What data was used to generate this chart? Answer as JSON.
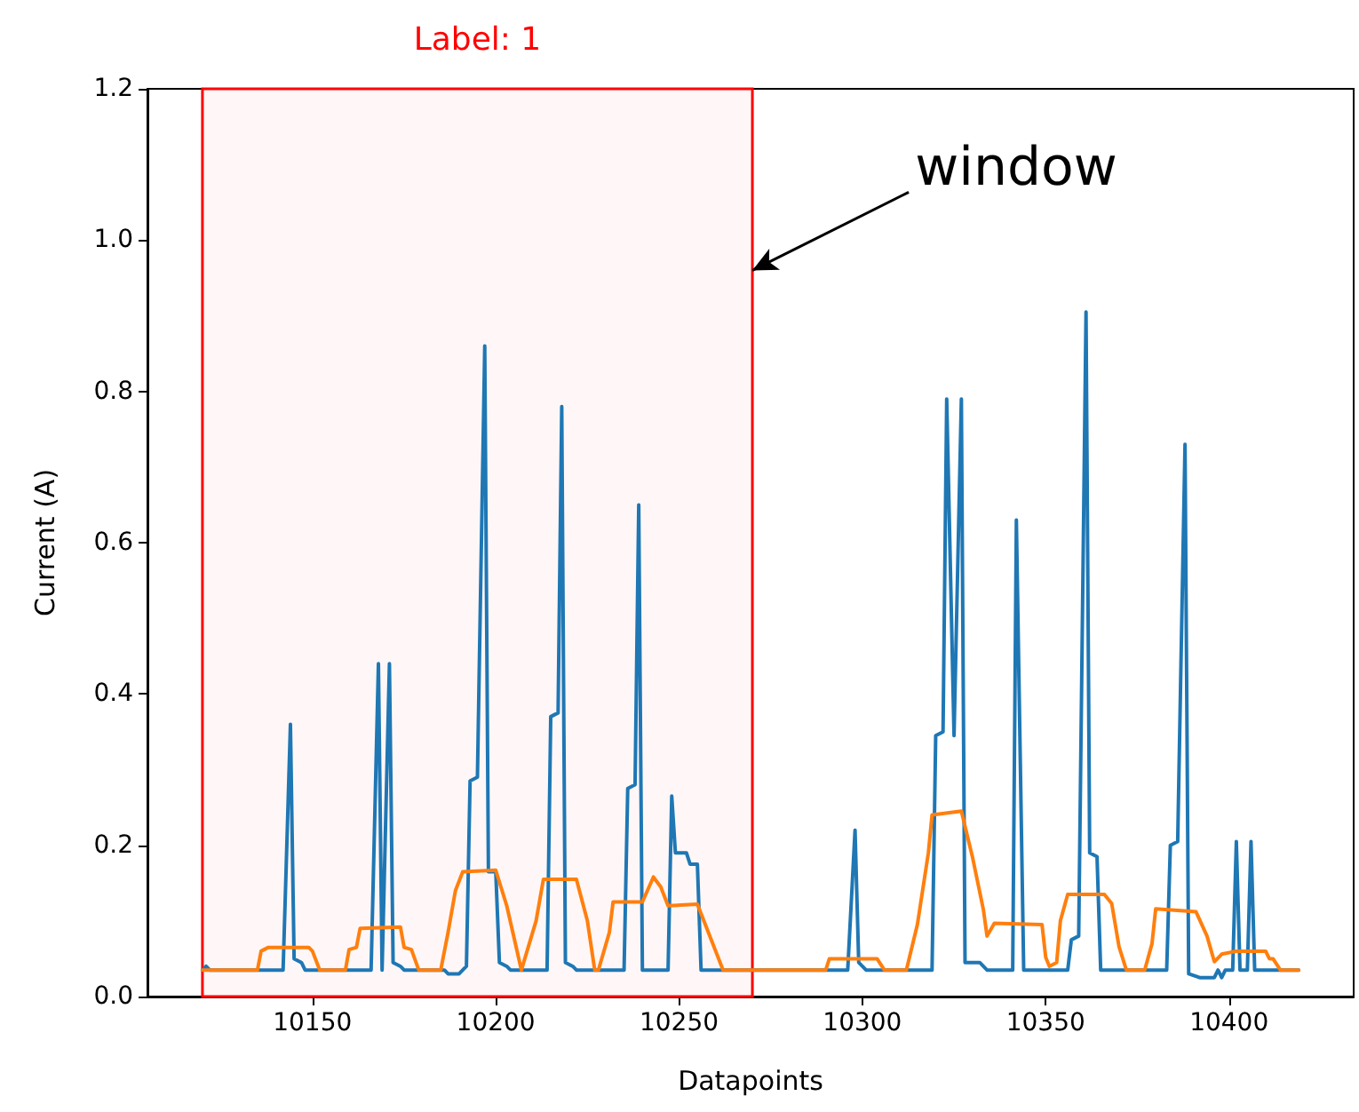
{
  "chart_data": {
    "type": "line",
    "xlabel": "Datapoints",
    "ylabel": "Current (A)",
    "series": [
      {
        "color": "#1f77b4",
        "x": [
          10120,
          10121,
          10122,
          10142,
          10144,
          10145,
          10147,
          10148,
          10166,
          10168,
          10169,
          10171,
          10172,
          10174,
          10175,
          10186,
          10187,
          10190,
          10191,
          10192,
          10193,
          10195,
          10197,
          10198,
          10200,
          10201,
          10203,
          10204,
          10214,
          10215,
          10217,
          10218,
          10219,
          10221,
          10222,
          10235,
          10236,
          10238,
          10239,
          10240,
          10247,
          10248,
          10249,
          10252,
          10253,
          10255,
          10256,
          10296,
          10298,
          10299,
          10300,
          10301,
          10319,
          10320,
          10322,
          10323,
          10325,
          10327,
          10328,
          10332,
          10334,
          10341,
          10342,
          10344,
          10356,
          10357,
          10359,
          10361,
          10362,
          10364,
          10365,
          10383,
          10384,
          10386,
          10388,
          10389,
          10392,
          10396,
          10397,
          10398,
          10399,
          10401,
          10402,
          10403,
          10405,
          10406,
          10407,
          10419
        ],
        "values": [
          0.035,
          0.04,
          0.035,
          0.035,
          0.36,
          0.05,
          0.045,
          0.035,
          0.035,
          0.44,
          0.035,
          0.44,
          0.045,
          0.04,
          0.035,
          0.035,
          0.03,
          0.03,
          0.035,
          0.04,
          0.285,
          0.29,
          0.86,
          0.165,
          0.165,
          0.045,
          0.04,
          0.035,
          0.035,
          0.37,
          0.375,
          0.78,
          0.045,
          0.04,
          0.035,
          0.035,
          0.275,
          0.28,
          0.65,
          0.035,
          0.035,
          0.265,
          0.19,
          0.19,
          0.175,
          0.175,
          0.035,
          0.035,
          0.22,
          0.045,
          0.04,
          0.035,
          0.035,
          0.345,
          0.35,
          0.79,
          0.345,
          0.79,
          0.045,
          0.045,
          0.035,
          0.035,
          0.63,
          0.035,
          0.035,
          0.075,
          0.08,
          0.905,
          0.19,
          0.185,
          0.035,
          0.035,
          0.2,
          0.205,
          0.73,
          0.03,
          0.025,
          0.025,
          0.035,
          0.025,
          0.035,
          0.035,
          0.205,
          0.035,
          0.035,
          0.205,
          0.035,
          0.035
        ]
      },
      {
        "color": "#ff7f0e",
        "x": [
          10120,
          10135,
          10136,
          10138,
          10149,
          10150,
          10152,
          10159,
          10160,
          10162,
          10163,
          10174,
          10175,
          10177,
          10179,
          10185,
          10187,
          10189,
          10191,
          10200,
          10203,
          10207,
          10211,
          10213,
          10222,
          10225,
          10227,
          10228,
          10231,
          10232,
          10240,
          10243,
          10245,
          10247,
          10255,
          10262,
          10290,
          10291,
          10304,
          10306,
          10312,
          10315,
          10318,
          10319,
          10327,
          10330,
          10333,
          10334,
          10336,
          10349,
          10350,
          10351,
          10353,
          10354,
          10356,
          10366,
          10368,
          10370,
          10372,
          10377,
          10379,
          10380,
          10391,
          10394,
          10396,
          10398,
          10402,
          10410,
          10411,
          10412,
          10414,
          10419
        ],
        "values": [
          0.035,
          0.035,
          0.06,
          0.065,
          0.065,
          0.06,
          0.035,
          0.035,
          0.062,
          0.065,
          0.09,
          0.092,
          0.065,
          0.062,
          0.035,
          0.035,
          0.085,
          0.14,
          0.165,
          0.167,
          0.12,
          0.035,
          0.1,
          0.155,
          0.155,
          0.1,
          0.035,
          0.035,
          0.085,
          0.125,
          0.125,
          0.158,
          0.145,
          0.12,
          0.122,
          0.035,
          0.035,
          0.05,
          0.05,
          0.035,
          0.035,
          0.095,
          0.19,
          0.24,
          0.245,
          0.185,
          0.115,
          0.08,
          0.097,
          0.095,
          0.052,
          0.04,
          0.045,
          0.1,
          0.135,
          0.135,
          0.123,
          0.066,
          0.035,
          0.035,
          0.07,
          0.116,
          0.112,
          0.08,
          0.046,
          0.056,
          0.06,
          0.06,
          0.05,
          0.05,
          0.035,
          0.035
        ]
      }
    ],
    "xlim": [
      10105,
      10434
    ],
    "xticks": [
      10150,
      10200,
      10250,
      10300,
      10350,
      10400
    ],
    "ylim": [
      0,
      1.2
    ],
    "yticks": [
      {
        "value": 0,
        "label": "0.0"
      },
      0.2,
      0.4,
      0.6,
      0.8,
      {
        "value": 1,
        "label": "1.0"
      },
      1.2
    ],
    "bands": [
      {
        "axis": "x",
        "from": 10120,
        "to": 10270,
        "label": "Label: 1",
        "color": "#ff0000"
      }
    ],
    "annotations": [
      {
        "text": "window",
        "x": 10270,
        "y": 0.96
      }
    ],
    "grid": false,
    "marker": "none",
    "line_style": "solid"
  }
}
